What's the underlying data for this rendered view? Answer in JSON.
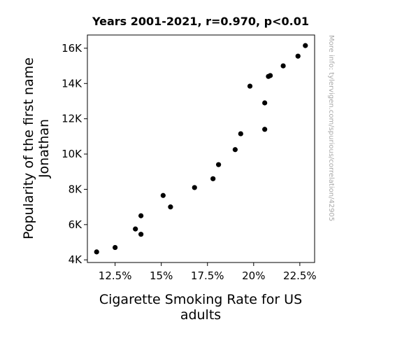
{
  "chart_data": {
    "type": "scatter",
    "title": "Years 2001-2021, r=0.970, p<0.01",
    "xlabel": "Cigarette Smoking Rate for US adults",
    "xlabel_lines": [
      "Cigarette Smoking Rate for US",
      "adults"
    ],
    "ylabel": "Popularity of the first name Jonathan",
    "ylabel_lines": [
      "Popularity of the first name",
      "Jonathan"
    ],
    "watermark": "More info: tylervigen.com/spurious/correlation/42905",
    "xlim": [
      11.0,
      23.3
    ],
    "ylim": [
      3850,
      16750
    ],
    "xticks": [
      12.5,
      15,
      17.5,
      20,
      22.5
    ],
    "xtick_labels": [
      "12.5%",
      "15%",
      "17.5%",
      "20%",
      "22.5%"
    ],
    "yticks": [
      4000,
      6000,
      8000,
      10000,
      12000,
      14000,
      16000
    ],
    "ytick_labels": [
      "4K",
      "6K",
      "8K",
      "10K",
      "12K",
      "14K",
      "16K"
    ],
    "point_color": "#000000",
    "grid": false,
    "points": [
      {
        "x": 22.8,
        "y": 16150
      },
      {
        "x": 22.4,
        "y": 15550
      },
      {
        "x": 21.6,
        "y": 15000
      },
      {
        "x": 20.9,
        "y": 14450
      },
      {
        "x": 20.8,
        "y": 14400
      },
      {
        "x": 19.8,
        "y": 13850
      },
      {
        "x": 20.6,
        "y": 12900
      },
      {
        "x": 20.6,
        "y": 11400
      },
      {
        "x": 19.3,
        "y": 11150
      },
      {
        "x": 19.0,
        "y": 10250
      },
      {
        "x": 18.1,
        "y": 9400
      },
      {
        "x": 17.8,
        "y": 8600
      },
      {
        "x": 16.8,
        "y": 8100
      },
      {
        "x": 15.1,
        "y": 7650
      },
      {
        "x": 15.5,
        "y": 7000
      },
      {
        "x": 13.9,
        "y": 6500
      },
      {
        "x": 13.6,
        "y": 5750
      },
      {
        "x": 13.9,
        "y": 5450
      },
      {
        "x": 12.5,
        "y": 4700
      },
      {
        "x": 11.5,
        "y": 4450
      }
    ]
  }
}
